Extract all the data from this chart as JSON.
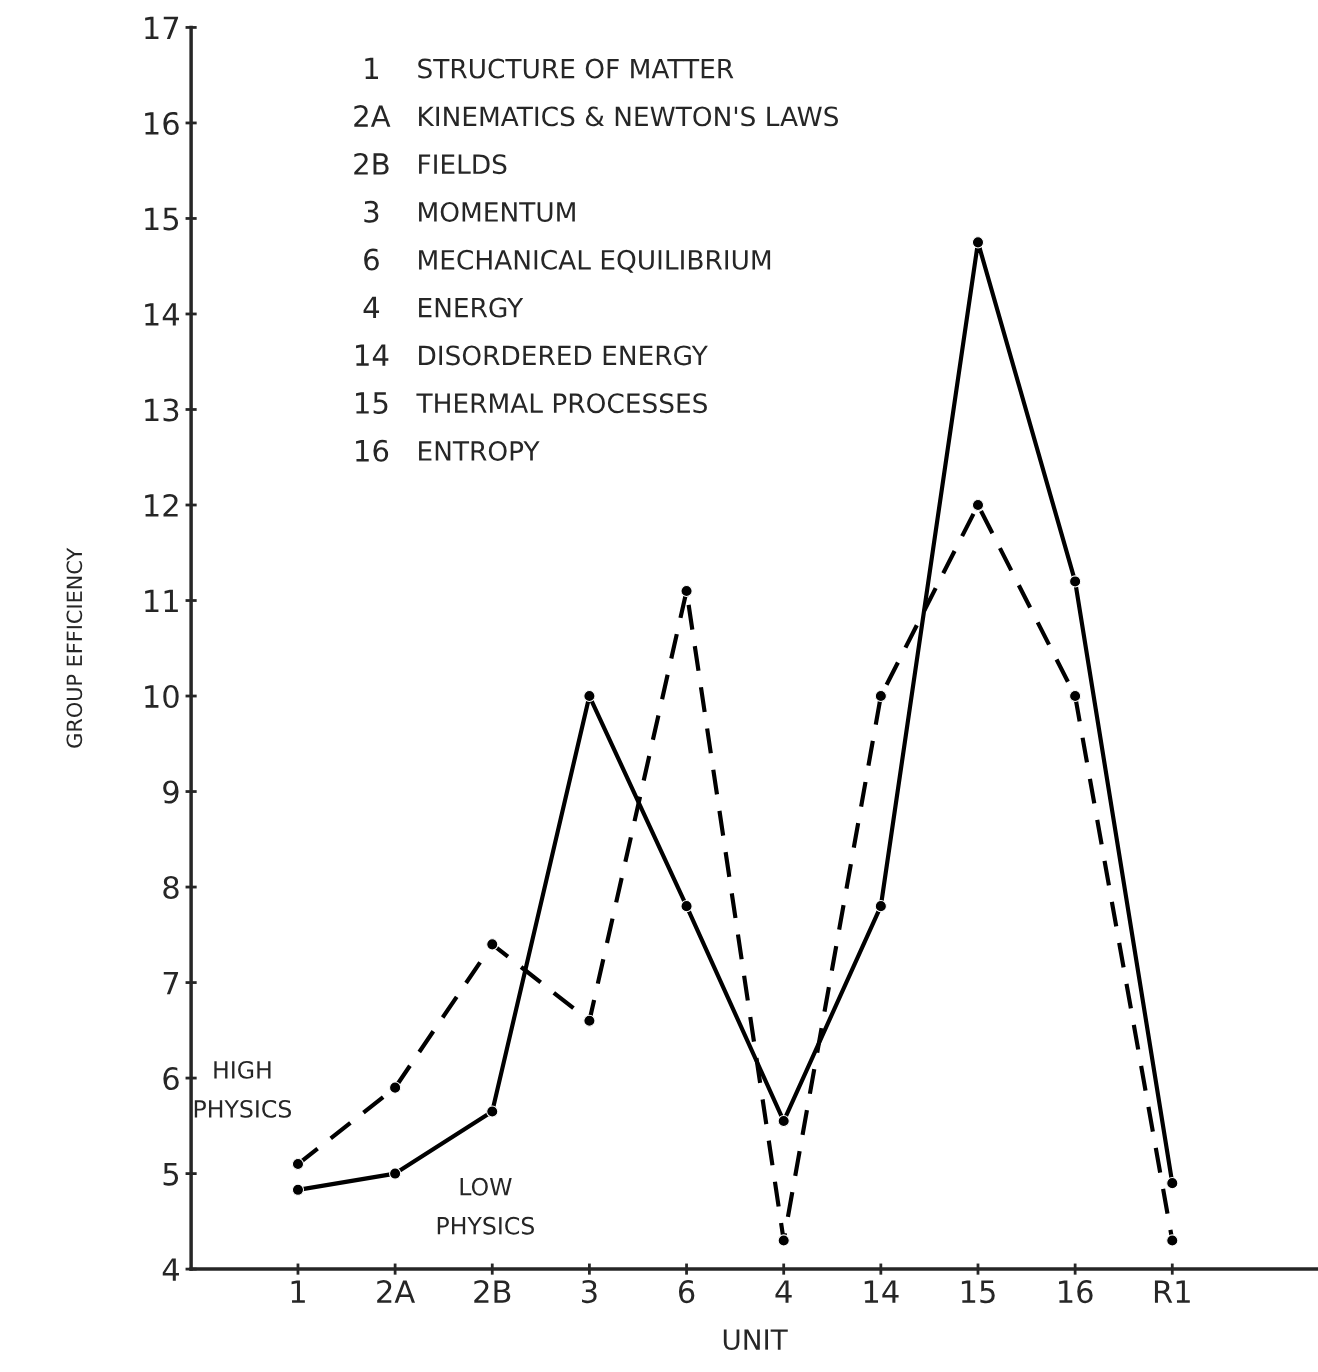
{
  "chart_data": {
    "type": "line",
    "xlabel": "UNIT",
    "ylabel": "GROUP EFFICIENCY",
    "categories": [
      "1",
      "2A",
      "2B",
      "3",
      "6",
      "4",
      "14",
      "15",
      "16",
      "R1"
    ],
    "series": [
      {
        "name": "HIGH\nPHYSICS",
        "color": "#000000",
        "line_style": "dashed",
        "values": [
          5.1,
          5.9,
          7.4,
          6.6,
          11.1,
          4.3,
          10.0,
          12.0,
          10.0,
          4.3
        ]
      },
      {
        "name": "LOW\nPHYSICS",
        "color": "#000000",
        "line_style": "solid",
        "values": [
          4.83,
          5.0,
          5.65,
          10.0,
          7.8,
          5.55,
          7.8,
          14.75,
          11.2,
          4.9
        ]
      }
    ],
    "annotations": [
      "1 STRUCTURE OF MATTER",
      "2A KINEMATICS & NEWTON'S LAWS",
      "2B FIELDS",
      "3 MOMENTUM",
      "6 MECHANICAL EQUILIBRIUM",
      "4 ENERGY",
      "14 DISORDERED ENERGY",
      "15 THERMAL PROCESSES",
      "16 ENTROPY"
    ],
    "ylim": [
      4,
      17
    ],
    "yticks": [
      4,
      5,
      6,
      7,
      8,
      9,
      10,
      11,
      12,
      13,
      14,
      15,
      16,
      17
    ],
    "marker": "circle",
    "grid": false,
    "legend": false
  }
}
